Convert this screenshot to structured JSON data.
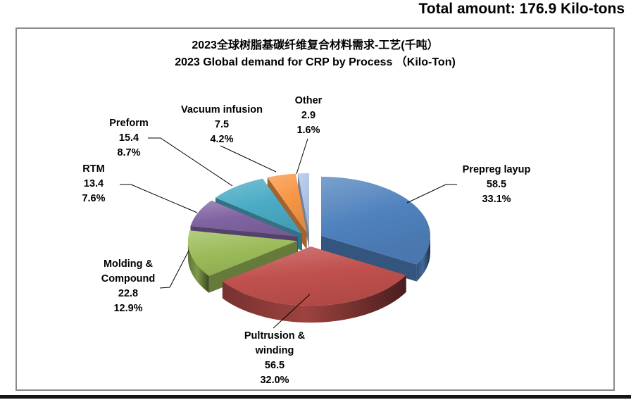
{
  "header": {
    "total_label": "Total amount: 176.9 Kilo-tons"
  },
  "chart_data": {
    "type": "pie",
    "style": "3d-exploded",
    "title_zh": "2023全球树脂基碳纤维复合材料需求-工艺(千吨）",
    "title_en": "2023 Global demand for CRP by Process （Kilo-Ton)",
    "total": 176.9,
    "unit": "Kilo-tons",
    "start_angle_deg": 0,
    "direction": "clockwise",
    "legend": "none",
    "leader_line_color": "#000000",
    "slices": [
      {
        "label": "Prepreg layup",
        "value": 58.5,
        "pct": 33.1,
        "pct_label": "33.1%",
        "color": "#4F81BD"
      },
      {
        "label": "Pultrusion & winding",
        "value": 56.5,
        "pct": 32.0,
        "pct_label": "32.0%",
        "color": "#C0504D"
      },
      {
        "label": "Molding & Compound",
        "value": 22.8,
        "pct": 12.9,
        "pct_label": "12.9%",
        "color": "#9BBB59"
      },
      {
        "label": "RTM",
        "value": 13.4,
        "pct": 7.6,
        "pct_label": "7.6%",
        "color": "#8064A2"
      },
      {
        "label": "Preform",
        "value": 15.4,
        "pct": 8.7,
        "pct_label": "8.7%",
        "color": "#4BACC6"
      },
      {
        "label": "Vacuum infusion",
        "value": 7.5,
        "pct": 4.2,
        "pct_label": "4.2%",
        "color": "#F79646"
      },
      {
        "label": "Other",
        "value": 2.9,
        "pct": 1.6,
        "pct_label": "1.6%",
        "color": "#AFC3E6"
      }
    ]
  }
}
